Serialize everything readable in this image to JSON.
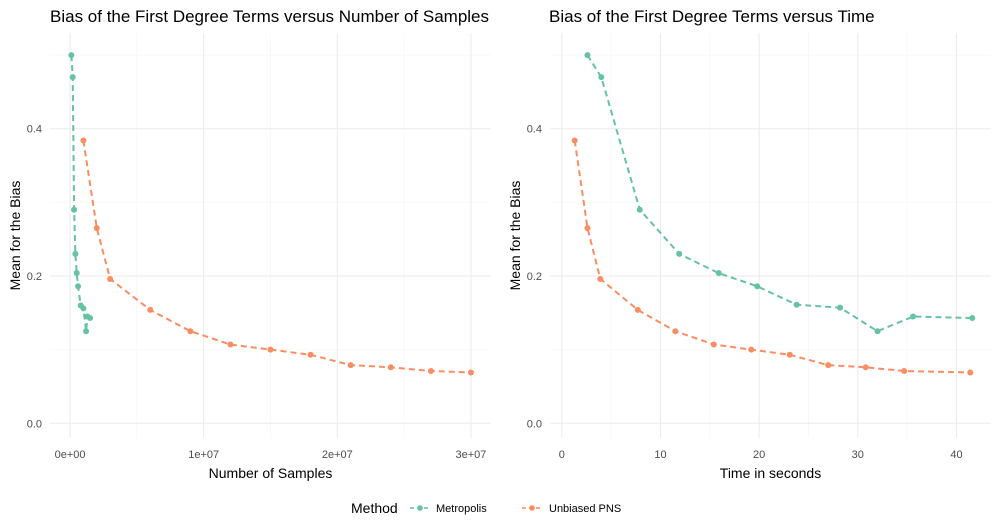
{
  "legend": {
    "title": "Method",
    "entries": [
      {
        "label": "Metropolis",
        "color": "#66c2a5"
      },
      {
        "label": "Unbiased PNS",
        "color": "#fc8d62"
      }
    ]
  },
  "chart_data": [
    {
      "type": "line",
      "title": "Bias of the First Degree Terms versus Number of Samples",
      "xlabel": "Number of Samples",
      "ylabel": "Mean for the Bias",
      "xlim": [
        -1500000,
        31500000
      ],
      "ylim": [
        -0.02,
        0.53
      ],
      "xticks": [
        0,
        10000000,
        20000000,
        30000000
      ],
      "xtick_labels": [
        "0e+00",
        "1e+07",
        "2e+07",
        "3e+07"
      ],
      "yticks": [
        0.0,
        0.2,
        0.4
      ],
      "ytick_labels": [
        "0.0",
        "0.2",
        "0.4"
      ],
      "grid": true,
      "series": [
        {
          "name": "Metropolis",
          "x": [
            100000,
            200000,
            300000,
            400000,
            500000,
            600000,
            800000,
            1000000,
            1200000,
            1300000,
            1500000
          ],
          "y": [
            0.5,
            0.47,
            0.29,
            0.23,
            0.204,
            0.186,
            0.16,
            0.156,
            0.125,
            0.145,
            0.143
          ]
        },
        {
          "name": "Unbiased PNS",
          "x": [
            1000000,
            2000000,
            3000000,
            6000000,
            9000000,
            12000000,
            15000000,
            18000000,
            21000000,
            24000000,
            27000000,
            30000000
          ],
          "y": [
            0.384,
            0.265,
            0.196,
            0.154,
            0.125,
            0.107,
            0.1,
            0.093,
            0.079,
            0.076,
            0.071,
            0.069
          ]
        }
      ]
    },
    {
      "type": "line",
      "title": "Bias of the First Degree Terms versus Time",
      "xlabel": "Time in seconds",
      "ylabel": "Mean for the Bias",
      "xlim": [
        -1.2,
        43.5
      ],
      "ylim": [
        -0.02,
        0.53
      ],
      "xticks": [
        0,
        10,
        20,
        30,
        40
      ],
      "xtick_labels": [
        "0",
        "10",
        "20",
        "30",
        "40"
      ],
      "yticks": [
        0.0,
        0.2,
        0.4
      ],
      "ytick_labels": [
        "0.0",
        "0.2",
        "0.4"
      ],
      "grid": true,
      "series": [
        {
          "name": "Metropolis",
          "x": [
            2.6,
            4.0,
            7.9,
            11.9,
            15.9,
            19.8,
            23.8,
            28.2,
            32.0,
            35.6,
            41.6
          ],
          "y": [
            0.5,
            0.47,
            0.29,
            0.23,
            0.204,
            0.186,
            0.161,
            0.157,
            0.125,
            0.145,
            0.143
          ]
        },
        {
          "name": "Unbiased PNS",
          "x": [
            1.3,
            2.6,
            3.9,
            7.7,
            11.5,
            15.4,
            19.2,
            23.1,
            27.0,
            30.8,
            34.7,
            41.4
          ],
          "y": [
            0.384,
            0.265,
            0.196,
            0.154,
            0.125,
            0.107,
            0.1,
            0.093,
            0.079,
            0.076,
            0.071,
            0.069
          ]
        }
      ]
    }
  ]
}
